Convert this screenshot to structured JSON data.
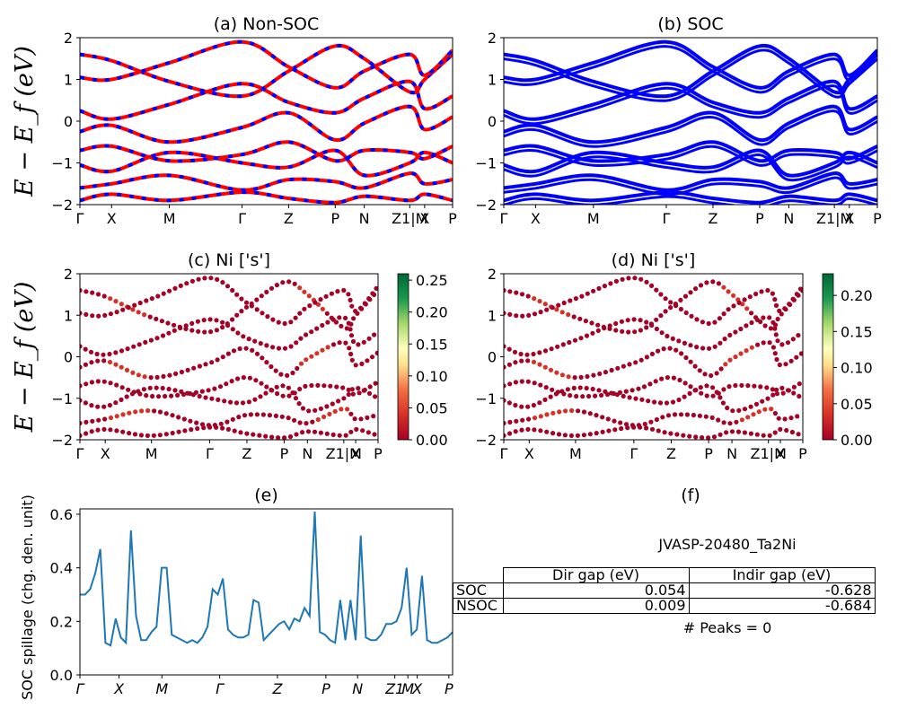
{
  "chart_data": [
    {
      "id": "a",
      "type": "line",
      "title": "(a) Non-SOC",
      "ylabel": "E − E_f (eV)",
      "ylim": [
        -2,
        2
      ],
      "yticks": [
        "2",
        "1",
        "0",
        "−1",
        "−2"
      ],
      "kpath_labels": [
        "Γ",
        "X",
        "M",
        "Γ",
        "Z",
        "P",
        "N",
        "Z1|M",
        "X",
        "P"
      ],
      "series": [
        {
          "values": [
            1.6,
            1.45,
            0.95,
            0.6,
            1.2,
            1.8,
            1.5,
            0.7,
            1.0,
            1.6
          ]
        },
        {
          "values": [
            1.05,
            1.0,
            1.4,
            1.9,
            1.3,
            0.8,
            1.2,
            1.6,
            1.1,
            1.7
          ]
        },
        {
          "values": [
            0.25,
            0.05,
            0.4,
            0.9,
            0.45,
            0.2,
            0.55,
            0.95,
            0.3,
            0.6
          ]
        },
        {
          "values": [
            -0.25,
            -0.1,
            -0.5,
            -0.15,
            0.2,
            -0.45,
            -0.05,
            0.35,
            -0.2,
            0.1
          ]
        },
        {
          "values": [
            -0.7,
            -0.6,
            -0.95,
            -0.8,
            -0.5,
            -0.95,
            -0.7,
            -0.75,
            -0.9,
            -0.6
          ]
        },
        {
          "values": [
            -1.05,
            -1.2,
            -0.75,
            -1.0,
            -1.1,
            -0.7,
            -1.3,
            -1.0,
            -0.75,
            -1.0
          ]
        },
        {
          "values": [
            -1.6,
            -1.5,
            -1.3,
            -1.65,
            -1.4,
            -1.45,
            -1.6,
            -1.25,
            -1.5,
            -1.4
          ]
        },
        {
          "values": [
            -1.9,
            -1.75,
            -1.9,
            -1.7,
            -1.85,
            -1.95,
            -1.8,
            -1.9,
            -1.75,
            -1.9
          ]
        }
      ]
    },
    {
      "id": "b",
      "type": "line",
      "title": "(b) SOC",
      "ylim": [
        -2,
        2
      ],
      "yticks": [
        "2",
        "1",
        "0",
        "−1",
        "−2"
      ],
      "kpath_labels": [
        "Γ",
        "X",
        "M",
        "Γ",
        "Z",
        "P",
        "N",
        "Z1|M",
        "X",
        "P"
      ],
      "series": [
        {
          "values": [
            1.6,
            1.45,
            0.95,
            0.6,
            1.2,
            1.8,
            1.5,
            0.7,
            1.0,
            1.6
          ]
        },
        {
          "values": [
            1.05,
            1.0,
            1.4,
            1.9,
            1.3,
            0.8,
            1.2,
            1.6,
            1.1,
            1.7
          ]
        },
        {
          "values": [
            0.25,
            0.05,
            0.4,
            0.9,
            0.45,
            0.2,
            0.55,
            0.95,
            0.3,
            0.6
          ]
        },
        {
          "values": [
            -0.25,
            -0.1,
            -0.5,
            -0.15,
            0.2,
            -0.45,
            -0.05,
            0.35,
            -0.2,
            0.1
          ]
        },
        {
          "values": [
            -0.7,
            -0.6,
            -0.95,
            -0.8,
            -0.5,
            -0.95,
            -0.7,
            -0.75,
            -0.9,
            -0.6
          ]
        },
        {
          "values": [
            -1.05,
            -1.2,
            -0.75,
            -1.0,
            -1.1,
            -0.7,
            -1.3,
            -1.0,
            -0.75,
            -1.0
          ]
        },
        {
          "values": [
            -1.6,
            -1.5,
            -1.3,
            -1.65,
            -1.4,
            -1.45,
            -1.6,
            -1.25,
            -1.5,
            -1.4
          ]
        },
        {
          "values": [
            -1.9,
            -1.75,
            -1.9,
            -1.7,
            -1.85,
            -1.95,
            -1.8,
            -1.9,
            -1.75,
            -1.9
          ]
        }
      ]
    },
    {
      "id": "c",
      "type": "scatter",
      "title": "(c)  Ni ['s']",
      "ylabel": "E − E_f (eV)",
      "ylim": [
        -2,
        2
      ],
      "yticks": [
        "2",
        "1",
        "0",
        "−1",
        "−2"
      ],
      "kpath_labels": [
        "Γ",
        "X",
        "M",
        "Γ",
        "Z",
        "P",
        "N",
        "Z1|M",
        "X",
        "P"
      ],
      "colorbar": {
        "ticks": [
          "0.25",
          "0.20",
          "0.15",
          "0.10",
          "0.05",
          "0.00"
        ],
        "max": 0.26
      },
      "series": [
        {
          "values": [
            1.6,
            1.45,
            0.95,
            0.6,
            1.2,
            1.8,
            1.5,
            0.7,
            1.0,
            1.6
          ]
        },
        {
          "values": [
            1.05,
            1.0,
            1.4,
            1.9,
            1.3,
            0.8,
            1.2,
            1.6,
            1.1,
            1.7
          ]
        },
        {
          "values": [
            0.25,
            0.05,
            0.4,
            0.9,
            0.45,
            0.2,
            0.55,
            0.95,
            0.3,
            0.6
          ]
        },
        {
          "values": [
            -0.25,
            -0.1,
            -0.5,
            -0.15,
            0.2,
            -0.45,
            -0.05,
            0.35,
            -0.2,
            0.1
          ]
        },
        {
          "values": [
            -0.7,
            -0.6,
            -0.95,
            -0.8,
            -0.5,
            -0.95,
            -0.7,
            -0.75,
            -0.9,
            -0.6
          ]
        },
        {
          "values": [
            -1.05,
            -1.2,
            -0.75,
            -1.0,
            -1.1,
            -0.7,
            -1.3,
            -1.0,
            -0.75,
            -1.0
          ]
        },
        {
          "values": [
            -1.6,
            -1.5,
            -1.3,
            -1.65,
            -1.4,
            -1.45,
            -1.6,
            -1.25,
            -1.5,
            -1.4
          ]
        },
        {
          "values": [
            -1.9,
            -1.75,
            -1.9,
            -1.7,
            -1.85,
            -1.95,
            -1.8,
            -1.9,
            -1.75,
            -1.9
          ]
        }
      ]
    },
    {
      "id": "d",
      "type": "scatter",
      "title": "(d) Ni ['s']",
      "ylim": [
        -2,
        2
      ],
      "yticks": [
        "2",
        "1",
        "0",
        "−1",
        "−2"
      ],
      "kpath_labels": [
        "Γ",
        "X",
        "M",
        "Γ",
        "Z",
        "P",
        "N",
        "Z1|M",
        "X",
        "P"
      ],
      "colorbar": {
        "ticks": [
          "0.20",
          "0.15",
          "0.10",
          "0.05",
          "0.00"
        ],
        "max": 0.23
      },
      "series": [
        {
          "values": [
            1.6,
            1.45,
            0.95,
            0.6,
            1.2,
            1.8,
            1.5,
            0.7,
            1.0,
            1.6
          ]
        },
        {
          "values": [
            1.05,
            1.0,
            1.4,
            1.9,
            1.3,
            0.8,
            1.2,
            1.6,
            1.1,
            1.7
          ]
        },
        {
          "values": [
            0.25,
            0.05,
            0.4,
            0.9,
            0.45,
            0.2,
            0.55,
            0.95,
            0.3,
            0.6
          ]
        },
        {
          "values": [
            -0.25,
            -0.1,
            -0.5,
            -0.15,
            0.2,
            -0.45,
            -0.05,
            0.35,
            -0.2,
            0.1
          ]
        },
        {
          "values": [
            -0.7,
            -0.6,
            -0.95,
            -0.8,
            -0.5,
            -0.95,
            -0.7,
            -0.75,
            -0.9,
            -0.6
          ]
        },
        {
          "values": [
            -1.05,
            -1.2,
            -0.75,
            -1.0,
            -1.1,
            -0.7,
            -1.3,
            -1.0,
            -0.75,
            -1.0
          ]
        },
        {
          "values": [
            -1.6,
            -1.5,
            -1.3,
            -1.65,
            -1.4,
            -1.45,
            -1.6,
            -1.25,
            -1.5,
            -1.4
          ]
        },
        {
          "values": [
            -1.9,
            -1.75,
            -1.9,
            -1.7,
            -1.85,
            -1.95,
            -1.8,
            -1.9,
            -1.75,
            -1.9
          ]
        }
      ]
    },
    {
      "id": "e",
      "type": "line",
      "title": "(e)",
      "ylabel": "SOC spillage (chg. den. unit)",
      "ylim": [
        0,
        0.62
      ],
      "yticks": [
        "0.6",
        "0.4",
        "0.2",
        "0.0"
      ],
      "kpath_labels": [
        "Γ",
        "X",
        "M",
        "Γ",
        "Z",
        "P",
        "N",
        "Z1",
        "M",
        "X",
        "P"
      ],
      "series": [
        {
          "values": [
            0.3,
            0.3,
            0.32,
            0.38,
            0.47,
            0.12,
            0.11,
            0.21,
            0.14,
            0.12,
            0.54,
            0.22,
            0.13,
            0.13,
            0.16,
            0.18,
            0.4,
            0.4,
            0.15,
            0.14,
            0.13,
            0.12,
            0.13,
            0.12,
            0.14,
            0.18,
            0.32,
            0.3,
            0.36,
            0.17,
            0.15,
            0.14,
            0.14,
            0.15,
            0.28,
            0.27,
            0.13,
            0.15,
            0.17,
            0.19,
            0.2,
            0.17,
            0.21,
            0.2,
            0.25,
            0.22,
            0.61,
            0.16,
            0.15,
            0.13,
            0.12,
            0.28,
            0.13,
            0.28,
            0.13,
            0.52,
            0.14,
            0.13,
            0.13,
            0.15,
            0.19,
            0.19,
            0.2,
            0.25,
            0.4,
            0.15,
            0.17,
            0.37,
            0.13,
            0.12,
            0.12,
            0.13,
            0.14,
            0.16
          ]
        }
      ]
    }
  ],
  "panel_f": {
    "title": "(f)",
    "jid": "JVASP-20480_Ta2Ni",
    "table": {
      "headers": [
        "",
        "Dir gap (eV)",
        "Indir gap (eV)"
      ],
      "rows": [
        {
          "label": "SOC",
          "dir": "0.054",
          "indir": "-0.628"
        },
        {
          "label": "NSOC",
          "dir": "0.009",
          "indir": "-0.684"
        }
      ]
    },
    "peaks": "# Peaks = 0"
  },
  "colors": {
    "nonsoc_red": "#ff0000",
    "nonsoc_blue": "#0000ff",
    "soc_blue": "#0000ff",
    "spillage_line": "#1f77b4"
  }
}
